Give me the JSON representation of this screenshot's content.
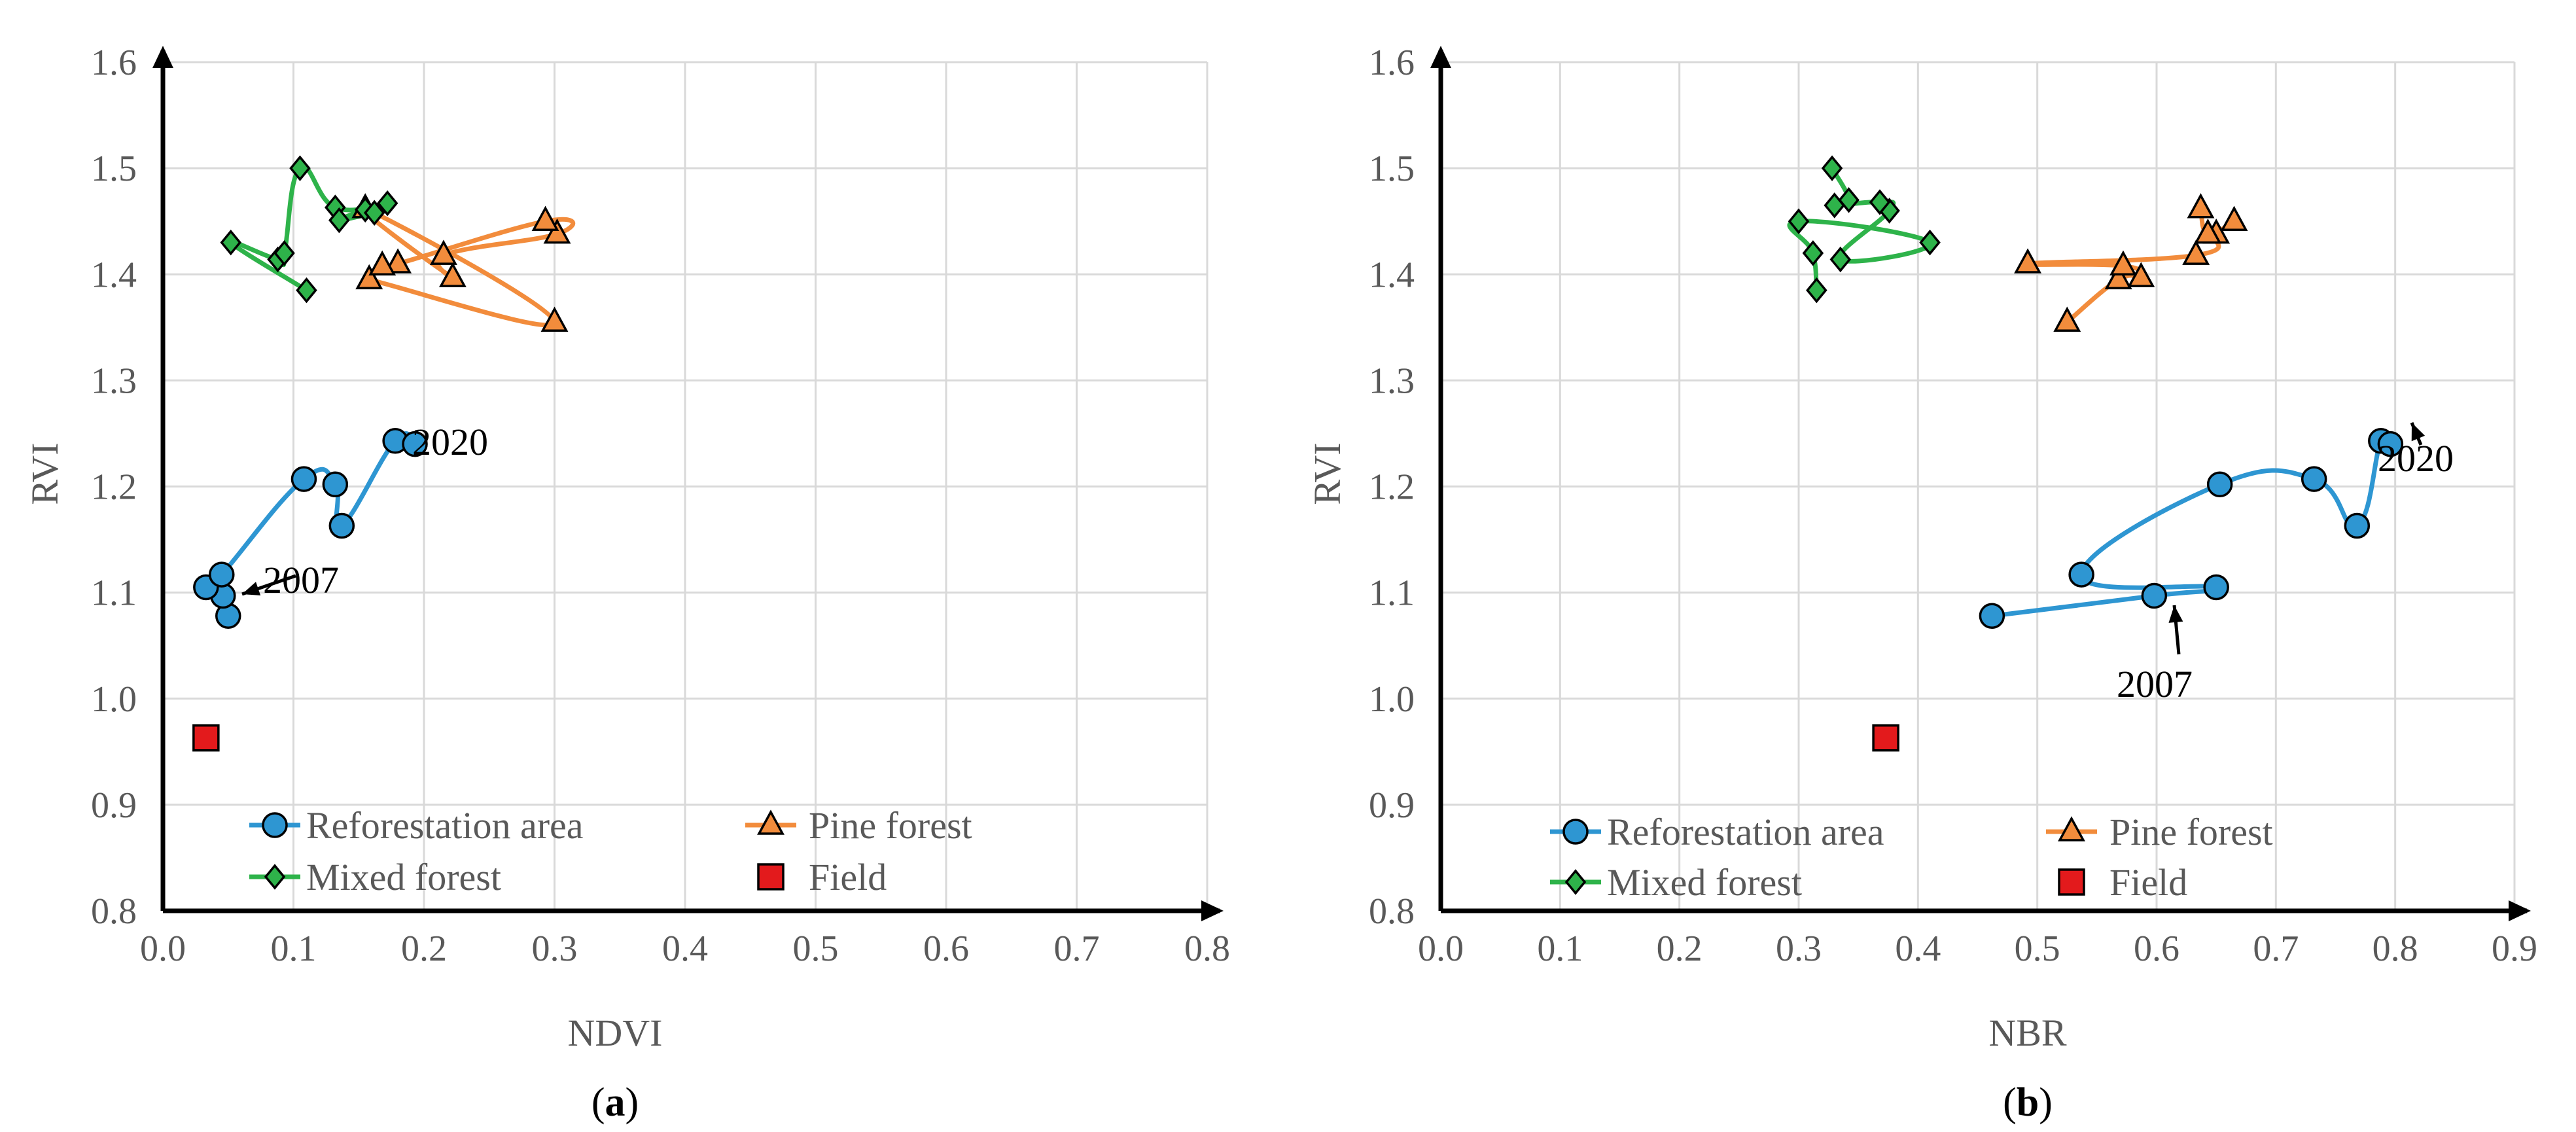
{
  "figure": {
    "panels": [
      "a",
      "b"
    ]
  },
  "chart_data": [
    {
      "id": "a",
      "type": "scatter",
      "caption": {
        "open": "(",
        "letter": "a",
        "close": ")"
      },
      "xlabel": "NDVI",
      "ylabel": "RVI",
      "xlim": [
        0.0,
        0.8
      ],
      "ylim": [
        0.8,
        1.6
      ],
      "xticks": [
        "0.0",
        "0.1",
        "0.2",
        "0.3",
        "0.4",
        "0.5",
        "0.6",
        "0.7",
        "0.8"
      ],
      "yticks": [
        "0.8",
        "0.9",
        "1.0",
        "1.1",
        "1.2",
        "1.3",
        "1.4",
        "1.5",
        "1.6"
      ],
      "grid": true,
      "legend_position": "bottom-left",
      "series": [
        {
          "name": "Reforestation area",
          "color": "#2e96d2",
          "marker": "circle",
          "connected": true,
          "x": [
            0.05,
            0.046,
            0.033,
            0.045,
            0.108,
            0.132,
            0.137,
            0.178,
            0.193
          ],
          "y": [
            1.078,
            1.097,
            1.105,
            1.117,
            1.207,
            1.202,
            1.163,
            1.243,
            1.24
          ]
        },
        {
          "name": "Pine forest",
          "color": "#f28c3c",
          "marker": "triangle",
          "connected": true,
          "x": [
            0.158,
            0.3,
            0.155,
            0.222,
            0.215,
            0.302,
            0.293,
            0.18,
            0.168
          ],
          "y": [
            1.395,
            1.355,
            1.462,
            1.397,
            1.418,
            1.438,
            1.45,
            1.41,
            1.408
          ]
        },
        {
          "name": "Mixed forest",
          "color": "#2eb34a",
          "marker": "diamond",
          "connected": true,
          "x": [
            0.11,
            0.052,
            0.088,
            0.093,
            0.105,
            0.132,
            0.172,
            0.155,
            0.135,
            0.162
          ],
          "y": [
            1.385,
            1.43,
            1.414,
            1.42,
            1.5,
            1.463,
            1.467,
            1.461,
            1.451,
            1.458
          ]
        },
        {
          "name": "Field",
          "color": "#e31a1c",
          "marker": "square",
          "connected": false,
          "x": [
            0.033
          ],
          "y": [
            0.963
          ]
        }
      ],
      "annotations": [
        {
          "text": "2020",
          "x": 0.193,
          "y": 1.24
        },
        {
          "text": "2007",
          "x": 0.05,
          "y": 1.09
        }
      ]
    },
    {
      "id": "b",
      "type": "scatter",
      "caption": {
        "open": "(",
        "letter": "b",
        "close": ")"
      },
      "xlabel": "NBR",
      "ylabel": "RVI",
      "xlim": [
        0.0,
        0.9
      ],
      "ylim": [
        0.8,
        1.6
      ],
      "xticks": [
        "0.0",
        "0.1",
        "0.2",
        "0.3",
        "0.4",
        "0.5",
        "0.6",
        "0.7",
        "0.8",
        "0.9"
      ],
      "yticks": [
        "0.8",
        "0.9",
        "1.0",
        "1.1",
        "1.2",
        "1.3",
        "1.4",
        "1.5",
        "1.6"
      ],
      "grid": true,
      "legend_position": "bottom-left",
      "series": [
        {
          "name": "Reforestation area",
          "color": "#2e96d2",
          "marker": "circle",
          "connected": true,
          "x": [
            0.462,
            0.598,
            0.65,
            0.537,
            0.653,
            0.732,
            0.768,
            0.788,
            0.796
          ],
          "y": [
            1.078,
            1.097,
            1.105,
            1.117,
            1.202,
            1.207,
            1.163,
            1.243,
            1.24
          ]
        },
        {
          "name": "Pine forest",
          "color": "#f28c3c",
          "marker": "triangle",
          "connected": true,
          "x": [
            0.525,
            0.568,
            0.587,
            0.572,
            0.492,
            0.633,
            0.65,
            0.665,
            0.643,
            0.637
          ],
          "y": [
            1.355,
            1.395,
            1.397,
            1.408,
            1.41,
            1.418,
            1.438,
            1.45,
            1.438,
            1.462
          ]
        },
        {
          "name": "Mixed forest",
          "color": "#2eb34a",
          "marker": "diamond",
          "connected": true,
          "x": [
            0.315,
            0.312,
            0.3,
            0.41,
            0.335,
            0.376,
            0.368,
            0.33,
            0.342,
            0.328
          ],
          "y": [
            1.385,
            1.42,
            1.45,
            1.43,
            1.414,
            1.46,
            1.468,
            1.465,
            1.47,
            1.5
          ]
        },
        {
          "name": "Field",
          "color": "#e31a1c",
          "marker": "square",
          "connected": false,
          "x": [
            0.373
          ],
          "y": [
            0.963
          ]
        }
      ],
      "annotations": [
        {
          "text": "2020",
          "x": 0.796,
          "y": 1.24
        },
        {
          "text": "2007",
          "x": 0.598,
          "y": 1.097
        }
      ]
    }
  ]
}
